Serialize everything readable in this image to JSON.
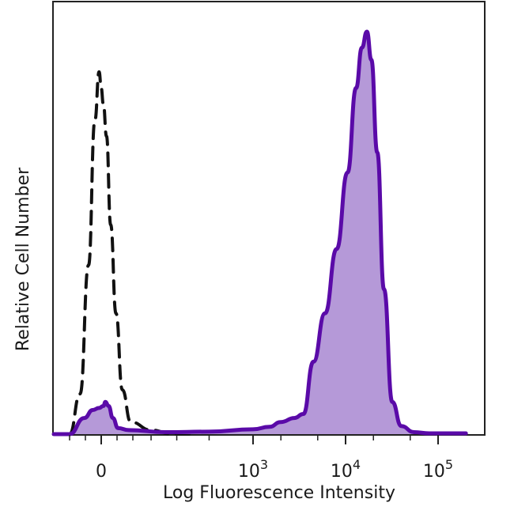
{
  "chart_data": {
    "type": "area",
    "title": "",
    "xlabel": "Log Fluorescence Intensity",
    "ylabel": "Relative Cell Number",
    "x_scale": "biexponential",
    "xlim": [
      -300,
      200000
    ],
    "ylim": [
      0,
      1
    ],
    "grid": false,
    "legend": "none",
    "x_ticks": [
      {
        "value": 0,
        "base": "0",
        "exp": ""
      },
      {
        "value": 1000,
        "base": "10",
        "exp": "3"
      },
      {
        "value": 10000,
        "base": "10",
        "exp": "4"
      },
      {
        "value": 100000,
        "base": "10",
        "exp": "5"
      }
    ],
    "series": [
      {
        "style": "dashed",
        "stroke": "#111111",
        "fill": "none",
        "x": [
          -150,
          -100,
          -60,
          -30,
          -10,
          0,
          10,
          25,
          45,
          70,
          100,
          140,
          200,
          280,
          380
        ],
        "y": [
          0.0,
          0.1,
          0.42,
          0.78,
          0.9,
          0.86,
          0.82,
          0.74,
          0.52,
          0.3,
          0.11,
          0.03,
          0.01,
          0.0,
          0.0
        ]
      },
      {
        "style": "solid",
        "stroke": "#5a0aa8",
        "fill": "#b599d8",
        "x": [
          -300,
          -150,
          -80,
          -40,
          -10,
          10,
          20,
          35,
          55,
          80,
          130,
          250,
          500,
          1000,
          1500,
          2000,
          2800,
          3500,
          4500,
          6000,
          8000,
          10500,
          13000,
          15000,
          17000,
          19000,
          22000,
          26000,
          32000,
          40000,
          55000,
          80000,
          200000
        ],
        "y": [
          0.0,
          0.0,
          0.04,
          0.06,
          0.065,
          0.07,
          0.08,
          0.07,
          0.04,
          0.015,
          0.01,
          0.005,
          0.006,
          0.012,
          0.018,
          0.03,
          0.04,
          0.05,
          0.18,
          0.3,
          0.46,
          0.65,
          0.86,
          0.96,
          1.0,
          0.93,
          0.7,
          0.36,
          0.08,
          0.02,
          0.005,
          0.002,
          0.002
        ]
      }
    ]
  }
}
